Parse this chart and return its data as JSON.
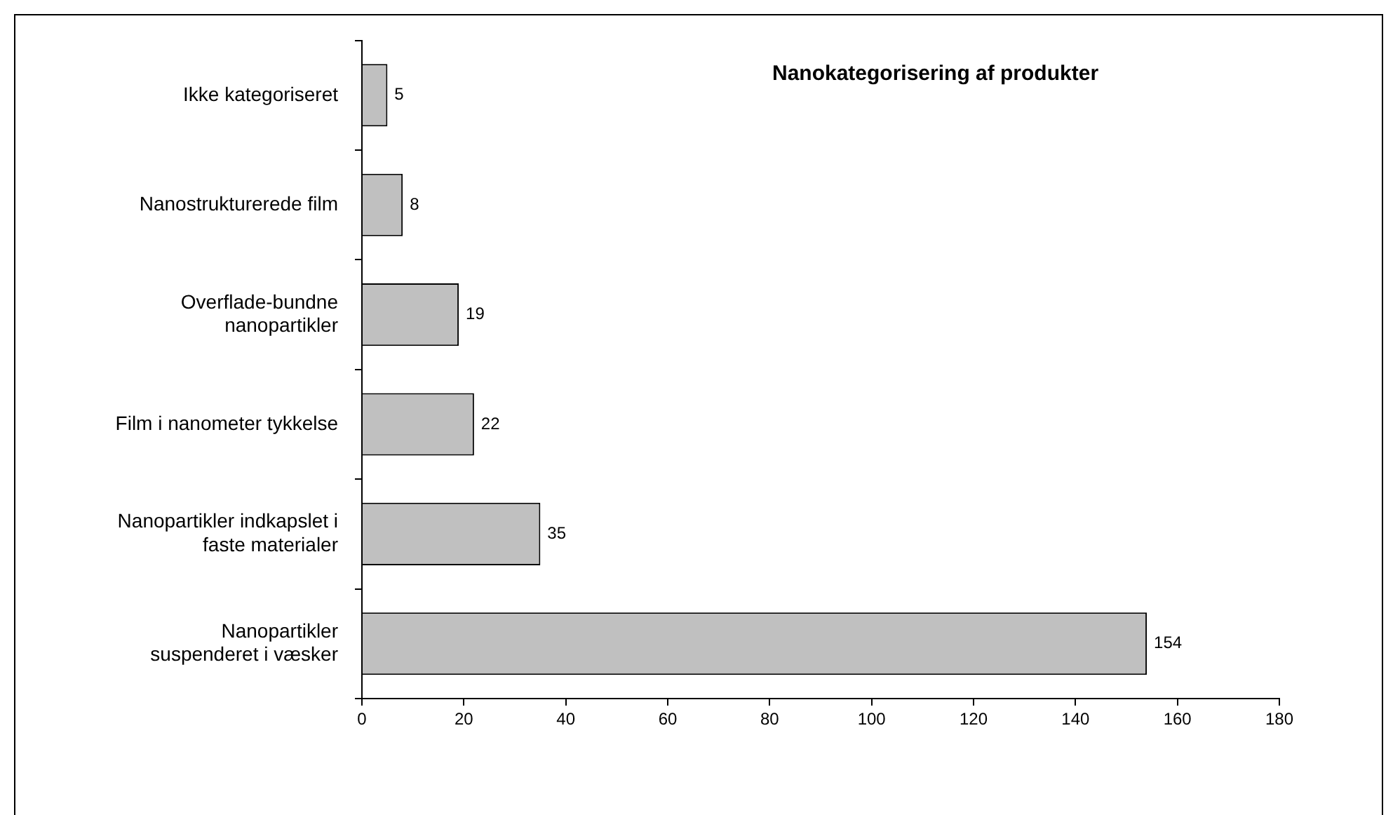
{
  "chart_data": {
    "type": "bar",
    "orientation": "horizontal",
    "title": "Nanokategorisering af produkter",
    "categories": [
      "Ikke kategoriseret",
      "Nanostrukturerede film",
      "Overflade-bundne\nnanopartikler",
      "Film i nanometer tykkelse",
      "Nanopartikler indkapslet i\nfaste materialer",
      "Nanopartikler\nsuspenderet i væsker"
    ],
    "values": [
      5,
      8,
      19,
      22,
      35,
      154
    ],
    "color": "#c0c0c0",
    "xlim": [
      0,
      180
    ],
    "xticks": [
      0,
      20,
      40,
      60,
      80,
      100,
      120,
      140,
      160,
      180
    ],
    "grid": false,
    "legend": false,
    "data_labels": true
  }
}
